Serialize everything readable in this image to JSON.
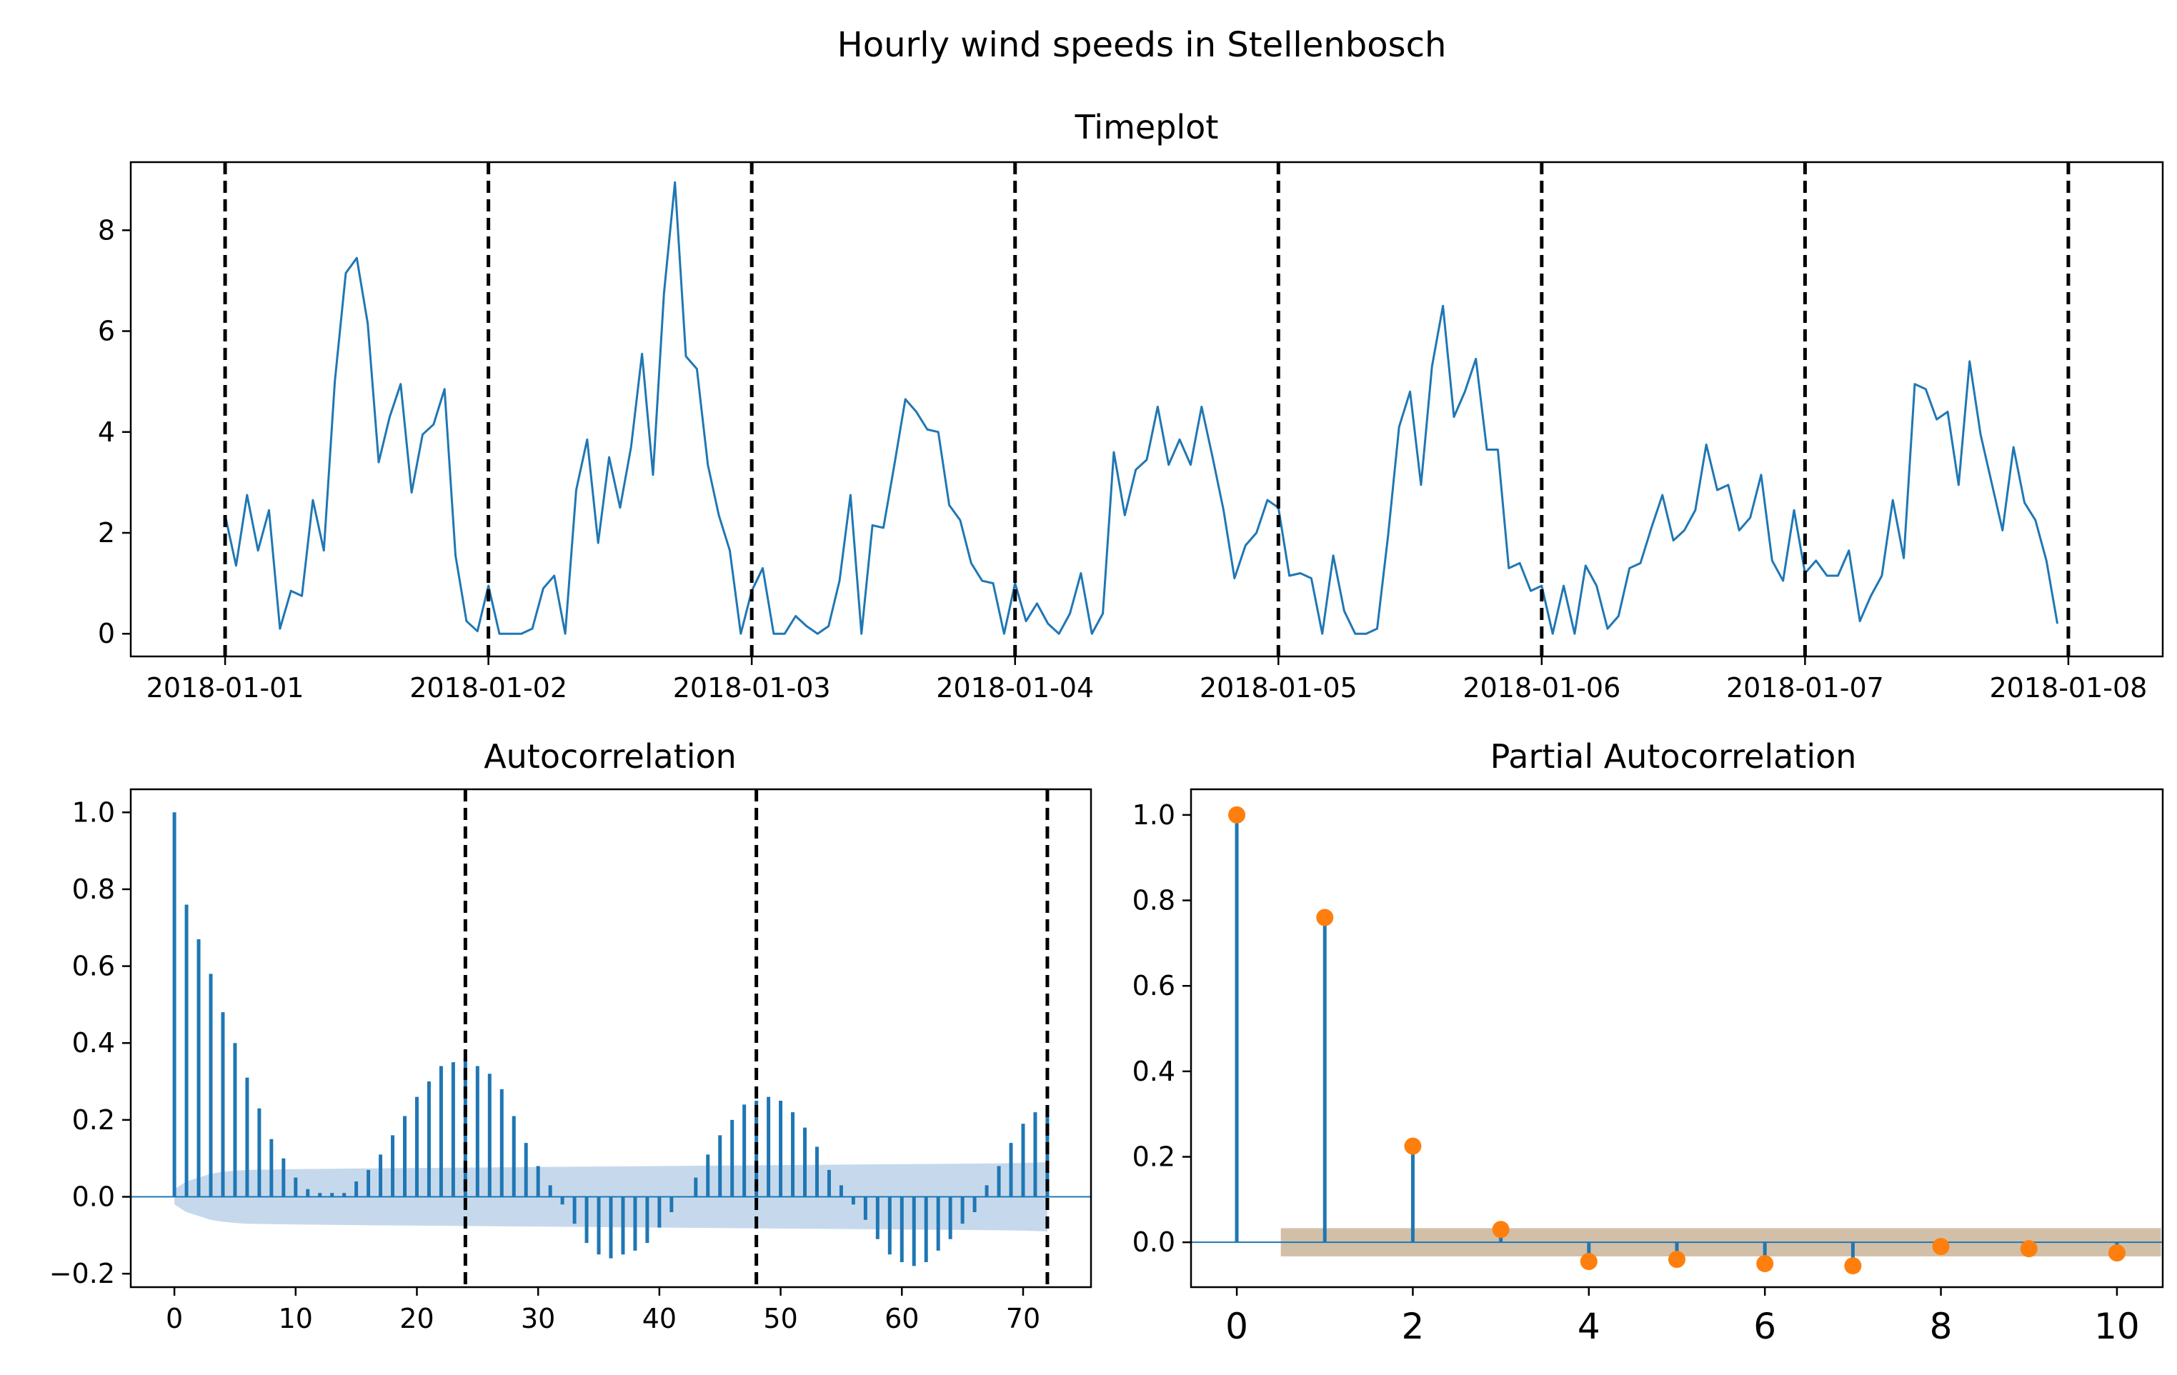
{
  "colors": {
    "line": "#1f77b4",
    "marker": "#ff7f0e",
    "acf_band": "#c6d9ec",
    "pacf_band": "#d2bfa7",
    "vline": "#000000"
  },
  "suptitle": "Hourly wind speeds in Stellenbosch",
  "chart_data": [
    {
      "type": "line",
      "title": "Timeplot",
      "x_tick_labels": [
        "2018-01-01",
        "2018-01-02",
        "2018-01-03",
        "2018-01-04",
        "2018-01-05",
        "2018-01-06",
        "2018-01-07",
        "2018-01-08"
      ],
      "y_ticks": [
        0,
        2,
        4,
        6,
        8
      ],
      "xlim_hours": [
        -8.6,
        176.6
      ],
      "ylim": [
        -0.45,
        9.35
      ],
      "vlines_hours": [
        0,
        24,
        48,
        72,
        96,
        120,
        144,
        168
      ],
      "series": [
        {
          "name": "wind speed",
          "values": [
            2.35,
            1.35,
            2.75,
            1.65,
            2.45,
            0.1,
            0.85,
            0.75,
            2.65,
            1.65,
            5.0,
            7.15,
            7.45,
            6.15,
            3.4,
            4.3,
            4.95,
            2.8,
            3.95,
            4.15,
            4.85,
            1.55,
            0.25,
            0.05,
            0.95,
            0.0,
            0.0,
            0.0,
            0.1,
            0.9,
            1.15,
            0.0,
            2.85,
            3.85,
            1.8,
            3.5,
            2.5,
            3.7,
            5.55,
            3.15,
            6.75,
            8.95,
            5.5,
            5.25,
            3.35,
            2.35,
            1.65,
            0.0,
            0.85,
            1.3,
            0.0,
            0.0,
            0.35,
            0.15,
            0.0,
            0.15,
            1.05,
            2.75,
            0.0,
            2.15,
            2.1,
            3.35,
            4.65,
            4.4,
            4.05,
            4.0,
            2.55,
            2.25,
            1.4,
            1.05,
            1.0,
            0.0,
            1.0,
            0.25,
            0.6,
            0.2,
            0.0,
            0.4,
            1.2,
            0.0,
            0.4,
            3.6,
            2.35,
            3.25,
            3.45,
            4.5,
            3.35,
            3.85,
            3.35,
            4.5,
            3.5,
            2.45,
            1.1,
            1.75,
            2.0,
            2.65,
            2.5,
            1.15,
            1.2,
            1.1,
            0.0,
            1.55,
            0.45,
            0.0,
            0.0,
            0.1,
            1.95,
            4.1,
            4.8,
            2.95,
            5.3,
            6.5,
            4.3,
            4.8,
            5.45,
            3.65,
            3.65,
            1.3,
            1.4,
            0.85,
            0.95,
            0.0,
            0.95,
            0.0,
            1.35,
            0.95,
            0.1,
            0.35,
            1.3,
            1.4,
            2.1,
            2.75,
            1.85,
            2.05,
            2.45,
            3.75,
            2.85,
            2.95,
            2.05,
            2.3,
            3.15,
            1.45,
            1.05,
            2.45,
            1.2,
            1.45,
            1.15,
            1.15,
            1.65,
            0.25,
            0.75,
            1.15,
            2.65,
            1.5,
            4.95,
            4.85,
            4.25,
            4.4,
            2.95,
            5.4,
            3.95,
            3.0,
            2.05,
            3.7,
            2.6,
            2.25,
            1.45,
            0.2
          ]
        }
      ]
    },
    {
      "type": "bar",
      "title": "Autocorrelation",
      "x_ticks": [
        0,
        10,
        20,
        30,
        40,
        50,
        60,
        70
      ],
      "y_ticks": [
        "−0.2",
        "0.0",
        "0.2",
        "0.4",
        "0.6",
        "0.8",
        "1.0"
      ],
      "y_tick_values": [
        -0.2,
        0.0,
        0.2,
        0.4,
        0.6,
        0.8,
        1.0
      ],
      "xlim": [
        -3.6,
        75.6
      ],
      "ylim": [
        -0.235,
        1.06
      ],
      "vlines": [
        24,
        48,
        72
      ],
      "lags": [
        0,
        1,
        2,
        3,
        4,
        5,
        6,
        7,
        8,
        9,
        10,
        11,
        12,
        13,
        14,
        15,
        16,
        17,
        18,
        19,
        20,
        21,
        22,
        23,
        24,
        25,
        26,
        27,
        28,
        29,
        30,
        31,
        32,
        33,
        34,
        35,
        36,
        37,
        38,
        39,
        40,
        41,
        42,
        43,
        44,
        45,
        46,
        47,
        48,
        49,
        50,
        51,
        52,
        53,
        54,
        55,
        56,
        57,
        58,
        59,
        60,
        61,
        62,
        63,
        64,
        65,
        66,
        67,
        68,
        69,
        70,
        71,
        72
      ],
      "values": [
        1.0,
        0.76,
        0.67,
        0.58,
        0.48,
        0.4,
        0.31,
        0.23,
        0.15,
        0.1,
        0.05,
        0.02,
        0.01,
        0.01,
        0.01,
        0.04,
        0.07,
        0.11,
        0.16,
        0.21,
        0.26,
        0.3,
        0.34,
        0.35,
        0.36,
        0.34,
        0.32,
        0.28,
        0.21,
        0.14,
        0.08,
        0.03,
        -0.02,
        -0.07,
        -0.12,
        -0.15,
        -0.16,
        -0.15,
        -0.14,
        -0.12,
        -0.08,
        -0.04,
        0.0,
        0.05,
        0.11,
        0.16,
        0.2,
        0.24,
        0.25,
        0.26,
        0.25,
        0.22,
        0.18,
        0.13,
        0.07,
        0.03,
        -0.02,
        -0.06,
        -0.11,
        -0.15,
        -0.17,
        -0.18,
        -0.17,
        -0.14,
        -0.11,
        -0.07,
        -0.04,
        0.03,
        0.08,
        0.14,
        0.19,
        0.22,
        0.23
      ],
      "confidence_band_upper": [
        0.02,
        0.04,
        0.05,
        0.06,
        0.065,
        0.068,
        0.07,
        0.071,
        0.072,
        0.073,
        0.074,
        0.075,
        0.076,
        0.077,
        0.078,
        0.079,
        0.08,
        0.081,
        0.082,
        0.083,
        0.084,
        0.085,
        0.086,
        0.087,
        0.088,
        0.09
      ],
      "band_x": [
        0,
        1,
        2,
        3,
        4,
        5,
        6,
        8,
        10,
        13,
        16,
        20,
        24,
        28,
        32,
        36,
        40,
        44,
        48,
        52,
        56,
        60,
        64,
        68,
        70,
        72
      ]
    },
    {
      "type": "scatter",
      "title": "Partial Autocorrelation",
      "x_ticks": [
        0,
        2,
        4,
        6,
        8,
        10
      ],
      "y_ticks": [
        "0.0",
        "0.2",
        "0.4",
        "0.6",
        "0.8",
        "1.0"
      ],
      "y_tick_values": [
        0.0,
        0.2,
        0.4,
        0.6,
        0.8,
        1.0
      ],
      "xlim": [
        -0.5,
        10.5
      ],
      "ylim": [
        -0.105,
        1.06
      ],
      "lags": [
        0,
        1,
        2,
        3,
        4,
        5,
        6,
        7,
        8,
        9,
        10
      ],
      "values": [
        1.0,
        0.76,
        0.225,
        0.03,
        -0.045,
        -0.04,
        -0.05,
        -0.055,
        -0.01,
        -0.015,
        -0.025
      ],
      "confidence_band": [
        -0.033,
        0.033
      ],
      "band_x_range": [
        0.5,
        10.5
      ]
    }
  ]
}
